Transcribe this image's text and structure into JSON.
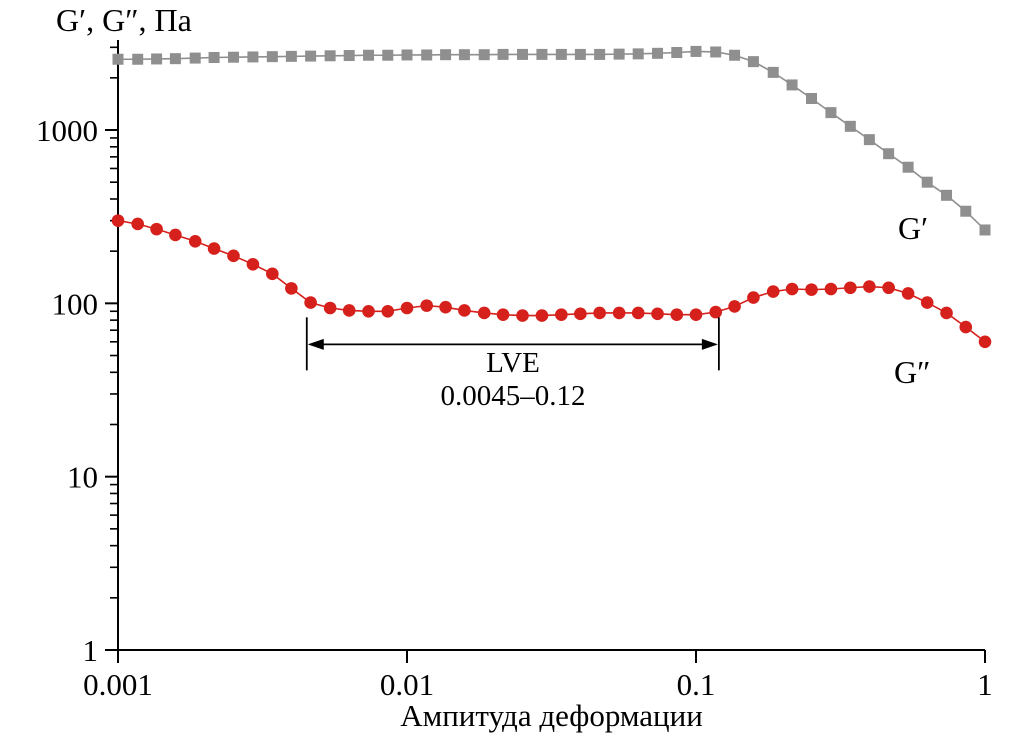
{
  "series_labels": {
    "gprime": "G′",
    "gdoubleprime": "G″"
  },
  "annotation": {
    "label": "LVE",
    "range_text": "0.0045–0.12",
    "x_start": 0.0045,
    "x_end": 0.12,
    "y_pa": 58
  },
  "colors": {
    "gprime": "#8f8f8f",
    "gdoubleprime": "#d6201c",
    "axis": "#000000"
  },
  "chart_data": {
    "type": "line",
    "title": "",
    "xlabel": "Ампитуда деформации",
    "ylabel": "G′, G″, Па",
    "xscale": "log",
    "yscale": "log",
    "xlim": [
      0.001,
      1
    ],
    "ylim": [
      1,
      3200
    ],
    "grid": false,
    "legend_position": "inline-right",
    "x_ticks": [
      "0.001",
      "0.01",
      "0.1",
      "1"
    ],
    "x_tick_values": [
      0.001,
      0.01,
      0.1,
      1
    ],
    "y_ticks": [
      "1",
      "10",
      "100",
      "1000"
    ],
    "y_tick_values": [
      1,
      10,
      100,
      1000
    ],
    "series": [
      {
        "id": "gprime",
        "name": "G′",
        "marker": "square",
        "color": "#8f8f8f",
        "x": [
          0.001,
          0.00117,
          0.00136,
          0.00158,
          0.00185,
          0.00215,
          0.00251,
          0.00293,
          0.00342,
          0.00398,
          0.00464,
          0.00542,
          0.00631,
          0.00736,
          0.00858,
          0.01,
          0.0117,
          0.0136,
          0.0158,
          0.0185,
          0.0215,
          0.0251,
          0.0293,
          0.0342,
          0.0398,
          0.0464,
          0.0542,
          0.0631,
          0.0736,
          0.0858,
          0.1,
          0.117,
          0.136,
          0.158,
          0.185,
          0.215,
          0.251,
          0.293,
          0.342,
          0.398,
          0.464,
          0.542,
          0.631,
          0.736,
          0.858,
          1.0
        ],
        "y": [
          2560,
          2560,
          2570,
          2580,
          2600,
          2620,
          2630,
          2640,
          2650,
          2660,
          2670,
          2680,
          2690,
          2700,
          2700,
          2710,
          2710,
          2720,
          2720,
          2720,
          2730,
          2730,
          2730,
          2730,
          2730,
          2730,
          2740,
          2750,
          2770,
          2800,
          2840,
          2820,
          2700,
          2480,
          2150,
          1820,
          1520,
          1260,
          1050,
          880,
          730,
          610,
          500,
          420,
          340,
          265
        ]
      },
      {
        "id": "gdoubleprime",
        "name": "G″",
        "marker": "circle",
        "color": "#d6201c",
        "x": [
          0.001,
          0.00117,
          0.00136,
          0.00158,
          0.00185,
          0.00215,
          0.00251,
          0.00293,
          0.00342,
          0.00398,
          0.00464,
          0.00542,
          0.00631,
          0.00736,
          0.00858,
          0.01,
          0.0117,
          0.0136,
          0.0158,
          0.0185,
          0.0215,
          0.0251,
          0.0293,
          0.0342,
          0.0398,
          0.0464,
          0.0542,
          0.0631,
          0.0736,
          0.0858,
          0.1,
          0.117,
          0.136,
          0.158,
          0.185,
          0.215,
          0.251,
          0.293,
          0.342,
          0.398,
          0.464,
          0.542,
          0.631,
          0.736,
          0.858,
          1.0
        ],
        "y": [
          300,
          287,
          268,
          248,
          228,
          207,
          188,
          168,
          148,
          122,
          101,
          94,
          91,
          90,
          90,
          94,
          97,
          95,
          91,
          88,
          86,
          85,
          85,
          86,
          87,
          88,
          88,
          88,
          87,
          86,
          86,
          89,
          96,
          108,
          117,
          121,
          120,
          121,
          123,
          125,
          123,
          114,
          101,
          88,
          73,
          60
        ]
      }
    ]
  }
}
